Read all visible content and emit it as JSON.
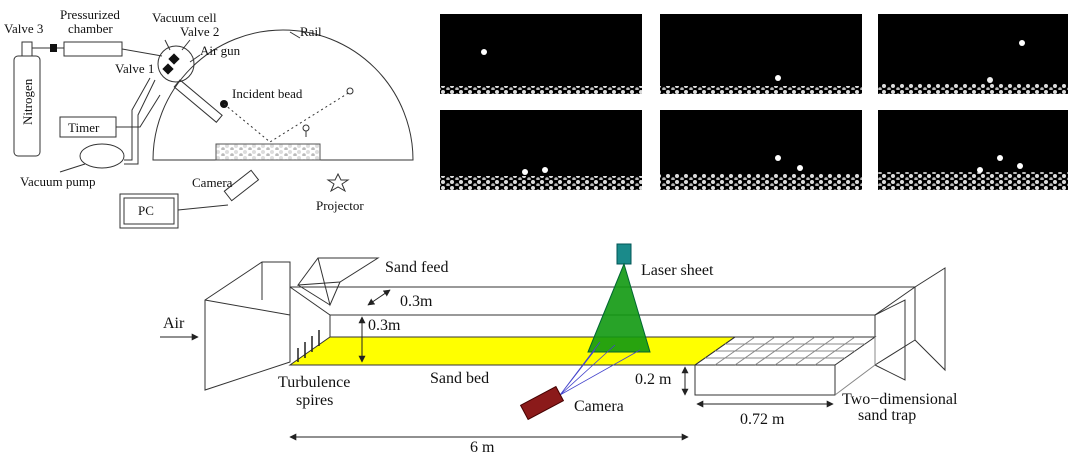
{
  "apparatus": {
    "valve_3": "Valve 3",
    "pressurized_chamber": [
      "Pressurized",
      "chamber"
    ],
    "vacuum_cell": "Vacuum cell",
    "valve_2": "Valve 2",
    "air_gun": "Air gun",
    "rail": "Rail",
    "valve_1": "Valve 1",
    "nitrogen": "Nitrogen",
    "incident_bead": "Incident bead",
    "timer": "Timer",
    "vacuum_pump": "Vacuum pump",
    "camera": "Camera",
    "pc": "PC",
    "projector": "Projector"
  },
  "wind_tunnel": {
    "sand_feed": "Sand feed",
    "laser_sheet": "Laser sheet",
    "width": "0.3m",
    "height": "0.3m",
    "air": "Air",
    "turbulence_spires": [
      "Turbulence",
      "spires"
    ],
    "sand_bed": "Sand bed",
    "trap_height": "0.2 m",
    "camera": "Camera",
    "trap_length": "0.72 m",
    "sand_trap": [
      "Two−dimensional",
      "sand trap"
    ],
    "bed_length": "6 m"
  }
}
